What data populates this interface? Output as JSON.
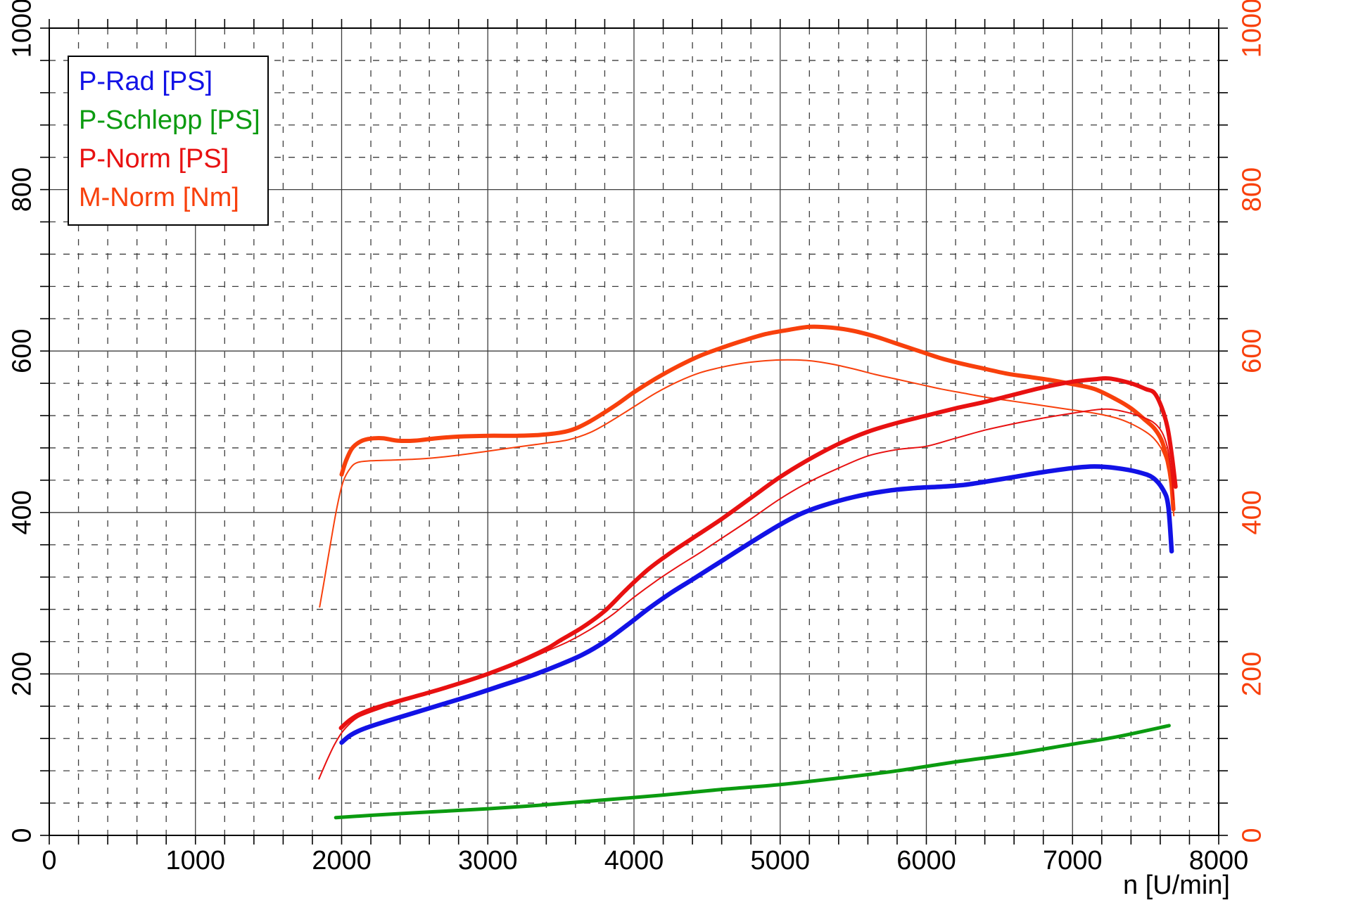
{
  "chart_data": {
    "type": "line",
    "title": "",
    "x_axis": {
      "label": "n [U/min]",
      "min": 0,
      "max": 8000,
      "major_step": 1000,
      "minor_step": 200,
      "tick_labels": [
        "0",
        "1000",
        "2000",
        "3000",
        "4000",
        "5000",
        "6000",
        "7000",
        "8000"
      ],
      "color": "#000000"
    },
    "y_axis_left": {
      "label": "",
      "min": 0,
      "max": 1000,
      "major_step": 200,
      "minor_step": 40,
      "tick_labels": [
        "0",
        "200",
        "400",
        "600",
        "800",
        "1000"
      ],
      "color": "#000000"
    },
    "y_axis_right": {
      "label": "",
      "min": 0,
      "max": 1000,
      "major_step": 200,
      "minor_step": 40,
      "tick_labels": [
        "0",
        "200",
        "400",
        "600",
        "800",
        "1000"
      ],
      "color": "#f8400c"
    },
    "grid": {
      "major_color": "#3d3d3d",
      "minor_color": "#3d3d3d",
      "minor_dash": "9 11",
      "border_color": "#000000"
    },
    "legend": {
      "position": "top-left",
      "items": [
        {
          "label": "P-Rad [PS]",
          "color": "#1212e6"
        },
        {
          "label": "P-Schlepp [PS]",
          "color": "#0b9b10"
        },
        {
          "label": "P-Norm [PS]",
          "color": "#e81111"
        },
        {
          "label": "M-Norm [Nm]",
          "color": "#f8400c"
        }
      ]
    },
    "series": [
      {
        "name": "M-Norm",
        "unit": "Nm",
        "color": "#f8400c",
        "width": 6,
        "points": [
          [
            2000,
            447
          ],
          [
            2030,
            464
          ],
          [
            2070,
            479
          ],
          [
            2120,
            487
          ],
          [
            2180,
            491
          ],
          [
            2280,
            492
          ],
          [
            2380,
            489
          ],
          [
            2500,
            489
          ],
          [
            2650,
            492
          ],
          [
            2800,
            494
          ],
          [
            3000,
            495
          ],
          [
            3200,
            495
          ],
          [
            3350,
            496
          ],
          [
            3500,
            499
          ],
          [
            3600,
            504
          ],
          [
            3700,
            513
          ],
          [
            3800,
            524
          ],
          [
            3900,
            536
          ],
          [
            4000,
            549
          ],
          [
            4150,
            566
          ],
          [
            4300,
            581
          ],
          [
            4450,
            594
          ],
          [
            4600,
            604
          ],
          [
            4750,
            613
          ],
          [
            4900,
            621
          ],
          [
            5050,
            626
          ],
          [
            5200,
            630
          ],
          [
            5350,
            629
          ],
          [
            5500,
            625
          ],
          [
            5650,
            618
          ],
          [
            5800,
            609
          ],
          [
            5950,
            600
          ],
          [
            6100,
            591
          ],
          [
            6250,
            584
          ],
          [
            6400,
            578
          ],
          [
            6550,
            572
          ],
          [
            6700,
            568
          ],
          [
            6850,
            564
          ],
          [
            7000,
            559
          ],
          [
            7150,
            553
          ],
          [
            7300,
            540
          ],
          [
            7400,
            529
          ],
          [
            7500,
            514
          ],
          [
            7560,
            504
          ],
          [
            7610,
            489
          ],
          [
            7650,
            464
          ],
          [
            7675,
            438
          ],
          [
            7690,
            404
          ]
        ]
      },
      {
        "name": "M-Norm-run2",
        "unit": "Nm",
        "color": "#f8400c",
        "width": 2,
        "points": [
          [
            1850,
            283
          ],
          [
            1890,
            325
          ],
          [
            1930,
            368
          ],
          [
            1970,
            408
          ],
          [
            2010,
            438
          ],
          [
            2060,
            455
          ],
          [
            2110,
            462
          ],
          [
            2200,
            464
          ],
          [
            2350,
            465
          ],
          [
            2500,
            466
          ],
          [
            2650,
            468
          ],
          [
            2800,
            471
          ],
          [
            3000,
            476
          ],
          [
            3200,
            481
          ],
          [
            3400,
            486
          ],
          [
            3550,
            490
          ],
          [
            3700,
            499
          ],
          [
            3850,
            514
          ],
          [
            4000,
            531
          ],
          [
            4150,
            548
          ],
          [
            4300,
            562
          ],
          [
            4450,
            573
          ],
          [
            4600,
            580
          ],
          [
            4750,
            585
          ],
          [
            4900,
            588
          ],
          [
            5050,
            589
          ],
          [
            5200,
            588
          ],
          [
            5350,
            584
          ],
          [
            5500,
            578
          ],
          [
            5650,
            571
          ],
          [
            5800,
            565
          ],
          [
            5950,
            559
          ],
          [
            6100,
            553
          ],
          [
            6250,
            548
          ],
          [
            6400,
            543
          ],
          [
            6550,
            539
          ],
          [
            6700,
            535
          ],
          [
            6850,
            531
          ],
          [
            7000,
            527
          ],
          [
            7150,
            523
          ],
          [
            7300,
            517
          ],
          [
            7400,
            510
          ],
          [
            7500,
            500
          ],
          [
            7560,
            491
          ],
          [
            7610,
            478
          ],
          [
            7650,
            458
          ],
          [
            7675,
            432
          ],
          [
            7693,
            396
          ]
        ]
      },
      {
        "name": "P-Norm",
        "unit": "PS",
        "color": "#e81111",
        "width": 6,
        "points": [
          [
            1995,
            133
          ],
          [
            2050,
            142
          ],
          [
            2120,
            150
          ],
          [
            2250,
            159
          ],
          [
            2400,
            167
          ],
          [
            2600,
            177
          ],
          [
            2800,
            188
          ],
          [
            3000,
            200
          ],
          [
            3200,
            214
          ],
          [
            3400,
            231
          ],
          [
            3500,
            242
          ],
          [
            3650,
            258
          ],
          [
            3800,
            278
          ],
          [
            3950,
            305
          ],
          [
            4100,
            330
          ],
          [
            4250,
            350
          ],
          [
            4400,
            368
          ],
          [
            4600,
            392
          ],
          [
            4800,
            418
          ],
          [
            5000,
            444
          ],
          [
            5200,
            466
          ],
          [
            5400,
            485
          ],
          [
            5600,
            500
          ],
          [
            5800,
            511
          ],
          [
            6000,
            520
          ],
          [
            6200,
            529
          ],
          [
            6400,
            537
          ],
          [
            6600,
            546
          ],
          [
            6800,
            555
          ],
          [
            7000,
            562
          ],
          [
            7150,
            565
          ],
          [
            7250,
            566
          ],
          [
            7400,
            560
          ],
          [
            7500,
            553
          ],
          [
            7560,
            548
          ],
          [
            7610,
            530
          ],
          [
            7650,
            505
          ],
          [
            7680,
            470
          ],
          [
            7705,
            432
          ]
        ]
      },
      {
        "name": "P-Norm-run2",
        "unit": "PS",
        "color": "#e81111",
        "width": 2,
        "points": [
          [
            1845,
            70
          ],
          [
            1900,
            93
          ],
          [
            1950,
            112
          ],
          [
            2000,
            127
          ],
          [
            2060,
            139
          ],
          [
            2120,
            147
          ],
          [
            2250,
            156
          ],
          [
            2400,
            165
          ],
          [
            2600,
            176
          ],
          [
            2800,
            188
          ],
          [
            3000,
            199
          ],
          [
            3200,
            212
          ],
          [
            3400,
            228
          ],
          [
            3550,
            240
          ],
          [
            3700,
            255
          ],
          [
            3850,
            273
          ],
          [
            4000,
            295
          ],
          [
            4150,
            315
          ],
          [
            4300,
            333
          ],
          [
            4450,
            350
          ],
          [
            4600,
            368
          ],
          [
            4800,
            392
          ],
          [
            5000,
            417
          ],
          [
            5200,
            438
          ],
          [
            5400,
            455
          ],
          [
            5600,
            470
          ],
          [
            5800,
            478
          ],
          [
            6000,
            482
          ],
          [
            6200,
            492
          ],
          [
            6400,
            502
          ],
          [
            6600,
            510
          ],
          [
            6800,
            517
          ],
          [
            7000,
            523
          ],
          [
            7150,
            527
          ],
          [
            7250,
            528
          ],
          [
            7350,
            525
          ],
          [
            7450,
            520
          ],
          [
            7550,
            512
          ],
          [
            7610,
            500
          ],
          [
            7650,
            480
          ],
          [
            7675,
            450
          ],
          [
            7692,
            416
          ]
        ]
      },
      {
        "name": "P-Rad",
        "unit": "PS",
        "color": "#1212e6",
        "width": 6.5,
        "points": [
          [
            2000,
            115
          ],
          [
            2060,
            124
          ],
          [
            2150,
            132
          ],
          [
            2300,
            141
          ],
          [
            2500,
            152
          ],
          [
            2700,
            163
          ],
          [
            2900,
            174
          ],
          [
            3100,
            186
          ],
          [
            3300,
            198
          ],
          [
            3500,
            212
          ],
          [
            3650,
            224
          ],
          [
            3800,
            240
          ],
          [
            3950,
            260
          ],
          [
            4100,
            281
          ],
          [
            4250,
            300
          ],
          [
            4400,
            317
          ],
          [
            4600,
            340
          ],
          [
            4800,
            363
          ],
          [
            5000,
            385
          ],
          [
            5150,
            399
          ],
          [
            5300,
            409
          ],
          [
            5500,
            419
          ],
          [
            5700,
            426
          ],
          [
            5900,
            430
          ],
          [
            6100,
            432
          ],
          [
            6250,
            434
          ],
          [
            6400,
            438
          ],
          [
            6600,
            444
          ],
          [
            6800,
            450
          ],
          [
            7000,
            455
          ],
          [
            7150,
            457
          ],
          [
            7300,
            455
          ],
          [
            7450,
            450
          ],
          [
            7550,
            443
          ],
          [
            7620,
            428
          ],
          [
            7655,
            408
          ],
          [
            7678,
            352
          ]
        ]
      },
      {
        "name": "P-Schlepp",
        "unit": "PS",
        "color": "#0b9b10",
        "width": 5,
        "points": [
          [
            1960,
            22
          ],
          [
            2300,
            26
          ],
          [
            2700,
            30
          ],
          [
            3000,
            33
          ],
          [
            3400,
            38
          ],
          [
            3800,
            44
          ],
          [
            4200,
            50
          ],
          [
            4600,
            57
          ],
          [
            5000,
            63
          ],
          [
            5400,
            71
          ],
          [
            5800,
            80
          ],
          [
            6200,
            91
          ],
          [
            6600,
            101
          ],
          [
            7000,
            113
          ],
          [
            7300,
            122
          ],
          [
            7660,
            136
          ]
        ]
      }
    ]
  }
}
